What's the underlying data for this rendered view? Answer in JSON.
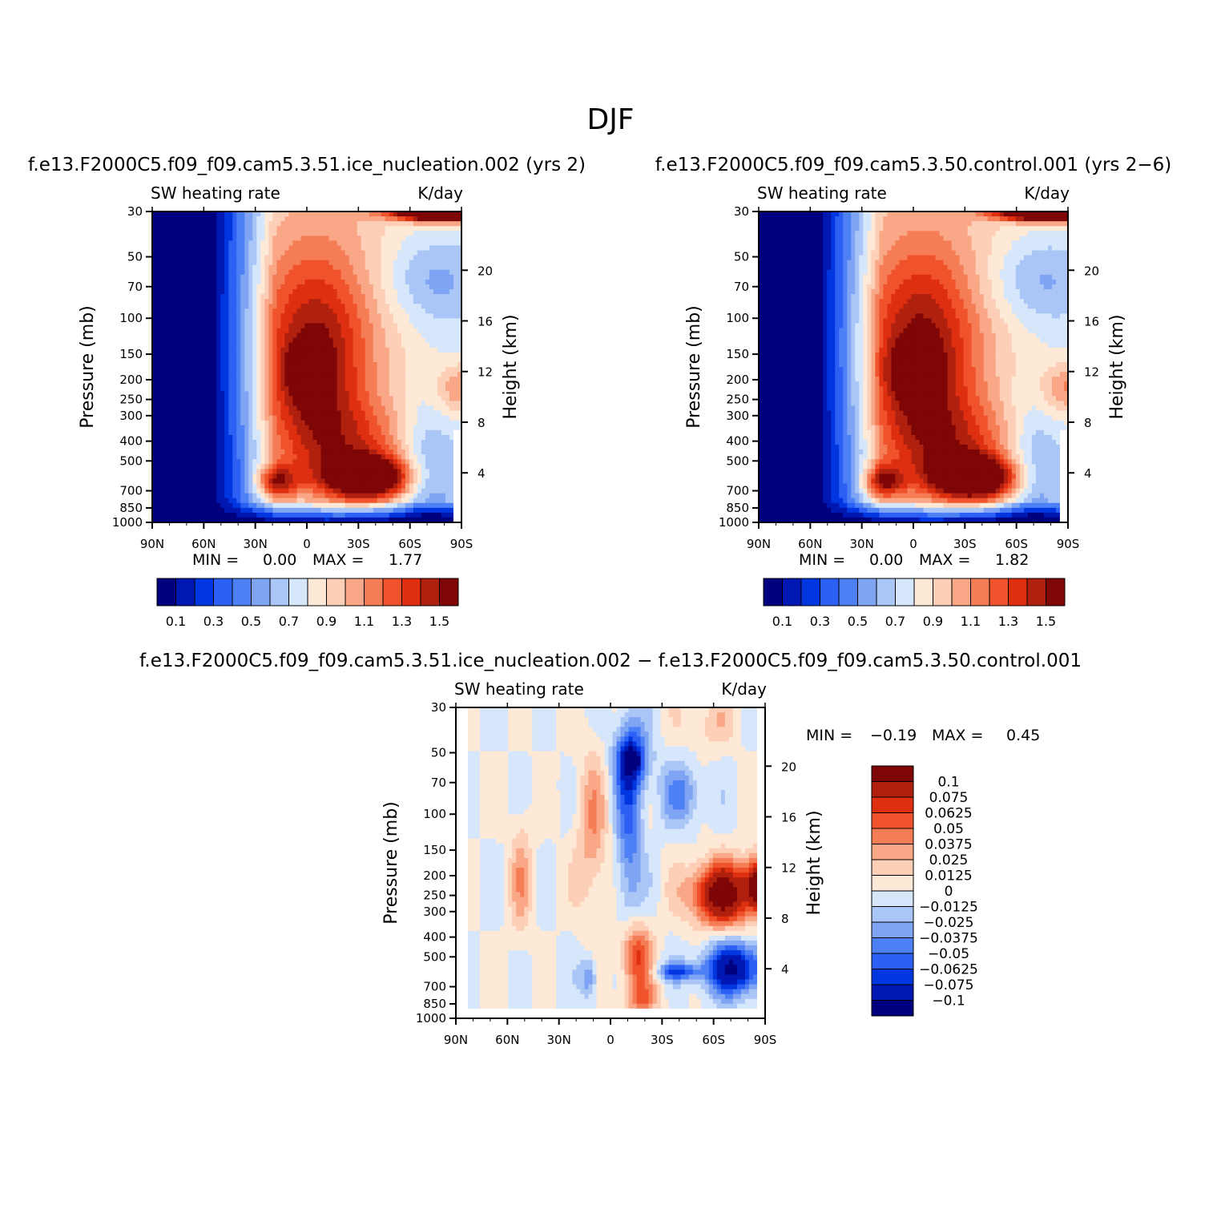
{
  "figure": {
    "title": "DJF",
    "colors": {
      "abs_scale": [
        "#00007e",
        "#0018b1",
        "#0036e0",
        "#2c5ff3",
        "#4d80f5",
        "#7ea4f3",
        "#aac6f6",
        "#d6e6fb",
        "#fee8d6",
        "#fccfb6",
        "#f9a786",
        "#f57d55",
        "#f0532b",
        "#de2f11",
        "#b0200e",
        "#7e0606"
      ],
      "diff_scale": [
        "#00007e",
        "#0018b1",
        "#0036e0",
        "#2c5ff3",
        "#4d80f5",
        "#7ea4f3",
        "#aac6f6",
        "#d6e6fb",
        "#fee8d6",
        "#fccfb6",
        "#f9a786",
        "#f57d55",
        "#f0532b",
        "#de2f11",
        "#b0200e",
        "#7e0606"
      ]
    }
  },
  "chart_data": [
    {
      "type": "heatmap",
      "id": "ice_nucleation",
      "title": "f.e13.F2000C5.f09_f09.cam5.3.51.ice_nucleation.002 (yrs 2)",
      "left_string": "SW heating rate",
      "right_string": "K/day",
      "ylabel": "Pressure (mb)",
      "ylabel_right": "Height (km)",
      "x_ticks": [
        "90N",
        "60N",
        "30N",
        "0",
        "30S",
        "60S",
        "90S"
      ],
      "y_ticks": [
        "30",
        "50",
        "70",
        "100",
        "150",
        "200",
        "250",
        "300",
        "400",
        "500",
        "700",
        "850",
        "1000"
      ],
      "height_ticks": [
        "20",
        "16",
        "12",
        "8",
        "4"
      ],
      "min_label": "MIN =",
      "min_value": "0.00",
      "max_label": "MAX =",
      "max_value": "1.77",
      "levels": [
        0.1,
        0.2,
        0.3,
        0.4,
        0.5,
        0.6,
        0.7,
        0.8,
        0.9,
        1.0,
        1.1,
        1.2,
        1.3,
        1.4,
        1.5
      ],
      "colorbar_labels": [
        "0.1",
        "0.3",
        "0.5",
        "0.7",
        "0.9",
        "1.1",
        "1.3",
        "1.5"
      ],
      "data_range": [
        0.0,
        1.77
      ]
    },
    {
      "type": "heatmap",
      "id": "control",
      "title": "f.e13.F2000C5.f09_f09.cam5.3.50.control.001 (yrs 2−6)",
      "left_string": "SW heating rate",
      "right_string": "K/day",
      "ylabel": "Pressure (mb)",
      "ylabel_right": "Height (km)",
      "x_ticks": [
        "90N",
        "60N",
        "30N",
        "0",
        "30S",
        "60S",
        "90S"
      ],
      "y_ticks": [
        "30",
        "50",
        "70",
        "100",
        "150",
        "200",
        "250",
        "300",
        "400",
        "500",
        "700",
        "850",
        "1000"
      ],
      "height_ticks": [
        "20",
        "16",
        "12",
        "8",
        "4"
      ],
      "min_label": "MIN =",
      "min_value": "0.00",
      "max_label": "MAX =",
      "max_value": "1.82",
      "levels": [
        0.1,
        0.2,
        0.3,
        0.4,
        0.5,
        0.6,
        0.7,
        0.8,
        0.9,
        1.0,
        1.1,
        1.2,
        1.3,
        1.4,
        1.5
      ],
      "colorbar_labels": [
        "0.1",
        "0.3",
        "0.5",
        "0.7",
        "0.9",
        "1.1",
        "1.3",
        "1.5"
      ],
      "data_range": [
        0.0,
        1.82
      ]
    },
    {
      "type": "heatmap",
      "id": "difference",
      "title": "f.e13.F2000C5.f09_f09.cam5.3.51.ice_nucleation.002 − f.e13.F2000C5.f09_f09.cam5.3.50.control.001",
      "left_string": "SW heating rate",
      "right_string": "K/day",
      "ylabel": "Pressure (mb)",
      "ylabel_right": "Height (km)",
      "x_ticks": [
        "90N",
        "60N",
        "30N",
        "0",
        "30S",
        "60S",
        "90S"
      ],
      "y_ticks": [
        "30",
        "50",
        "70",
        "100",
        "150",
        "200",
        "250",
        "300",
        "400",
        "500",
        "700",
        "850",
        "1000"
      ],
      "height_ticks": [
        "20",
        "16",
        "12",
        "8",
        "4"
      ],
      "min_label": "MIN =",
      "min_value": "−0.19",
      "max_label": "MAX =",
      "max_value": "0.45",
      "levels": [
        -0.1,
        -0.075,
        -0.0625,
        -0.05,
        -0.0375,
        -0.025,
        -0.0125,
        0,
        0.0125,
        0.025,
        0.0375,
        0.05,
        0.0625,
        0.075,
        0.1
      ],
      "colorbar_labels": [
        "0.1",
        "0.075",
        "0.0625",
        "0.05",
        "0.0375",
        "0.025",
        "0.0125",
        "0",
        "−0.0125",
        "−0.025",
        "−0.0375",
        "−0.05",
        "−0.0625",
        "−0.075",
        "−0.1"
      ],
      "data_range": [
        -0.19,
        0.45
      ]
    }
  ]
}
